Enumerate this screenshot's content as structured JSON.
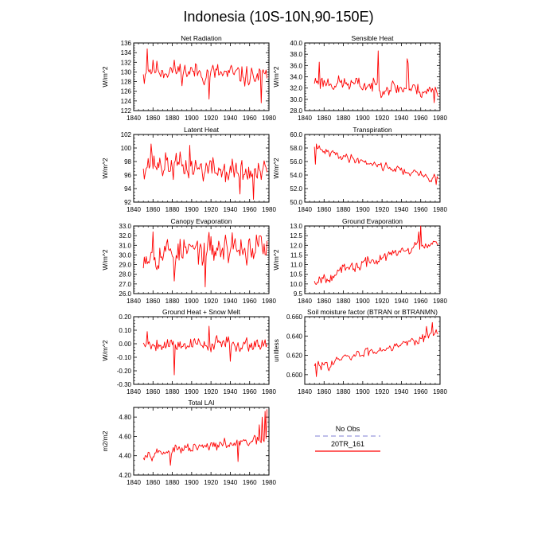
{
  "figure": {
    "title": "Indonesia (10S-10N,90-150E)",
    "legend": {
      "entries": [
        {
          "label": "No Obs",
          "color": "#9999dd",
          "dash": true
        },
        {
          "label": "20TR_161",
          "color": "#ff0000",
          "dash": false
        }
      ]
    }
  },
  "chart_data": [
    {
      "type": "line",
      "title": "Net Radiation",
      "ylabel": "W/m^2",
      "xlim": [
        1840,
        1980
      ],
      "ylim": [
        122,
        136
      ],
      "xticks": [
        1840,
        1860,
        1880,
        1900,
        1920,
        1940,
        1960,
        1980
      ],
      "xtick_labels": [
        "1840",
        "1860",
        "1880",
        "1900",
        "1920",
        "1940",
        "1960",
        "1980"
      ],
      "yticks": [
        122,
        124,
        126,
        128,
        130,
        132,
        134,
        136
      ],
      "ytick_labels": [
        "122",
        "124",
        "126",
        "128",
        "130",
        "132",
        "134",
        "136"
      ],
      "series": [
        {
          "name": "20TR_161",
          "start": 1850,
          "trend": [
            130.8,
            128.8
          ],
          "noise": 1.8,
          "seed": 11,
          "events": [
            [
              1854,
              134.8
            ],
            [
              1851,
              127.6
            ],
            [
              1972,
              123.6
            ],
            [
              1918,
              124.4
            ]
          ]
        }
      ]
    },
    {
      "type": "line",
      "title": "Sensible Heat",
      "ylabel": "W/m^2",
      "xlim": [
        1840,
        1980
      ],
      "ylim": [
        28,
        40
      ],
      "xticks": [
        1840,
        1860,
        1880,
        1900,
        1920,
        1940,
        1960,
        1980
      ],
      "xtick_labels": [
        "1840",
        "1860",
        "1880",
        "1900",
        "1920",
        "1940",
        "1960",
        "1980"
      ],
      "yticks": [
        28,
        30,
        32,
        34,
        36,
        38,
        40
      ],
      "ytick_labels": [
        "28.0",
        "30.0",
        "32.0",
        "34.0",
        "36.0",
        "38.0",
        "40.0"
      ],
      "series": [
        {
          "name": "20TR_161",
          "start": 1850,
          "trend": [
            33.2,
            31.4
          ],
          "noise": 1.1,
          "seed": 23,
          "events": [
            [
              1916,
              38.6
            ],
            [
              1946,
              37.2
            ],
            [
              1947,
              36.4
            ],
            [
              1855,
              36.6
            ],
            [
              1974,
              29.4
            ]
          ]
        }
      ]
    },
    {
      "type": "line",
      "title": "Latent Heat",
      "ylabel": "W/m^2",
      "xlim": [
        1840,
        1980
      ],
      "ylim": [
        92,
        102
      ],
      "xticks": [
        1840,
        1860,
        1880,
        1900,
        1920,
        1940,
        1960,
        1980
      ],
      "xtick_labels": [
        "1840",
        "1860",
        "1880",
        "1900",
        "1920",
        "1940",
        "1960",
        "1980"
      ],
      "yticks": [
        92,
        94,
        96,
        98,
        100,
        102
      ],
      "ytick_labels": [
        "92",
        "94",
        "96",
        "98",
        "100",
        "102"
      ],
      "series": [
        {
          "name": "20TR_161",
          "start": 1850,
          "trend": [
            97.8,
            96.0
          ],
          "noise": 1.6,
          "seed": 37,
          "events": [
            [
              1858,
              100.6
            ],
            [
              1898,
              100.4
            ],
            [
              1964,
              92.4
            ],
            [
              1950,
              93.2
            ]
          ]
        }
      ]
    },
    {
      "type": "line",
      "title": "Transpiration",
      "ylabel": "W/m^2",
      "xlim": [
        1840,
        1980
      ],
      "ylim": [
        50,
        60
      ],
      "xticks": [
        1840,
        1860,
        1880,
        1900,
        1920,
        1940,
        1960,
        1980
      ],
      "xtick_labels": [
        "1840",
        "1860",
        "1880",
        "1900",
        "1920",
        "1940",
        "1960",
        "1980"
      ],
      "yticks": [
        50,
        52,
        54,
        56,
        58,
        60
      ],
      "ytick_labels": [
        "50.0",
        "52.0",
        "54.0",
        "56.0",
        "58.0",
        "60.0"
      ],
      "series": [
        {
          "name": "20TR_161",
          "start": 1850,
          "trend": [
            57.8,
            53.4
          ],
          "noise": 0.5,
          "seed": 41,
          "events": [
            [
              1852,
              58.6
            ],
            [
              1851,
              55.6
            ],
            [
              1976,
              52.6
            ]
          ]
        }
      ]
    },
    {
      "type": "line",
      "title": "Canopy Evaporation",
      "ylabel": "W/m^2",
      "xlim": [
        1840,
        1980
      ],
      "ylim": [
        26,
        33
      ],
      "xticks": [
        1840,
        1860,
        1880,
        1900,
        1920,
        1940,
        1960,
        1980
      ],
      "xtick_labels": [
        "1840",
        "1860",
        "1880",
        "1900",
        "1920",
        "1940",
        "1960",
        "1980"
      ],
      "yticks": [
        26,
        27,
        28,
        29,
        30,
        31,
        32,
        33
      ],
      "ytick_labels": [
        "26.0",
        "27.0",
        "28.0",
        "29.0",
        "30.0",
        "31.0",
        "32.0",
        "33.0"
      ],
      "series": [
        {
          "name": "20TR_161",
          "start": 1850,
          "trend": [
            30.2,
            30.8
          ],
          "noise": 1.3,
          "seed": 53,
          "events": [
            [
              1914,
              26.7
            ],
            [
              1860,
              32.4
            ],
            [
              1942,
              32.3
            ],
            [
              1882,
              27.3
            ]
          ]
        }
      ]
    },
    {
      "type": "line",
      "title": "Ground Evaporation",
      "ylabel": "W/m^2",
      "xlim": [
        1840,
        1980
      ],
      "ylim": [
        9.5,
        13
      ],
      "xticks": [
        1840,
        1860,
        1880,
        1900,
        1920,
        1940,
        1960,
        1980
      ],
      "xtick_labels": [
        "1840",
        "1860",
        "1880",
        "1900",
        "1920",
        "1940",
        "1960",
        "1980"
      ],
      "yticks": [
        9.5,
        10,
        10.5,
        11,
        11.5,
        12,
        12.5,
        13
      ],
      "ytick_labels": [
        "9.5",
        "10.0",
        "10.5",
        "11.0",
        "11.5",
        "12.0",
        "12.5",
        "13.0"
      ],
      "series": [
        {
          "name": "20TR_161",
          "start": 1850,
          "trend": [
            10.2,
            12.3
          ],
          "noise": 0.25,
          "seed": 67,
          "events": [
            [
              1960,
              13.0
            ],
            [
              1851,
              10.0
            ],
            [
              1958,
              12.7
            ]
          ]
        }
      ]
    },
    {
      "type": "line",
      "title": "Ground Heat + Snow Melt",
      "ylabel": "W/m^2",
      "xlim": [
        1840,
        1980
      ],
      "ylim": [
        -0.3,
        0.2
      ],
      "xticks": [
        1840,
        1860,
        1880,
        1900,
        1920,
        1940,
        1960,
        1980
      ],
      "xtick_labels": [
        "1840",
        "1860",
        "1880",
        "1900",
        "1920",
        "1940",
        "1960",
        "1980"
      ],
      "yticks": [
        -0.3,
        -0.2,
        -0.1,
        0,
        0.1,
        0.2
      ],
      "ytick_labels": [
        "-0.30",
        "-0.20",
        "-0.10",
        "0.00",
        "0.10",
        "0.20"
      ],
      "series": [
        {
          "name": "20TR_161",
          "start": 1850,
          "trend": [
            0.0,
            0.0
          ],
          "noise": 0.045,
          "seed": 79,
          "events": [
            [
              1882,
              -0.23
            ],
            [
              1918,
              0.13
            ],
            [
              1854,
              0.09
            ],
            [
              1940,
              -0.13
            ]
          ]
        }
      ]
    },
    {
      "type": "line",
      "title": "Soil moisture factor (BTRAN or BTRANMN)",
      "ylabel": "unitless",
      "xlim": [
        1840,
        1980
      ],
      "ylim": [
        0.59,
        0.66
      ],
      "xticks": [
        1840,
        1860,
        1880,
        1900,
        1920,
        1940,
        1960,
        1980
      ],
      "xtick_labels": [
        "1840",
        "1860",
        "1880",
        "1900",
        "1920",
        "1940",
        "1960",
        "1980"
      ],
      "yticks": [
        0.6,
        0.62,
        0.64,
        0.66
      ],
      "ytick_labels": [
        "0.600",
        "0.620",
        "0.640",
        "0.660"
      ],
      "series": [
        {
          "name": "20TR_161",
          "start": 1850,
          "trend": [
            0.608,
            0.643
          ],
          "noise": 0.004,
          "seed": 83,
          "events": [
            [
              1972,
              0.654
            ],
            [
              1852,
              0.598
            ],
            [
              1966,
              0.65
            ]
          ]
        }
      ]
    },
    {
      "type": "line",
      "title": "Total LAI",
      "ylabel": "m2/m2",
      "xlim": [
        1840,
        1980
      ],
      "ylim": [
        4.2,
        4.9
      ],
      "xticks": [
        1840,
        1860,
        1880,
        1900,
        1920,
        1940,
        1960,
        1980
      ],
      "xtick_labels": [
        "1840",
        "1860",
        "1880",
        "1900",
        "1920",
        "1940",
        "1960",
        "1980"
      ],
      "yticks": [
        4.2,
        4.4,
        4.6,
        4.8
      ],
      "ytick_labels": [
        "4.20",
        "4.40",
        "4.60",
        "4.80"
      ],
      "series": [
        {
          "name": "20TR_161",
          "start": 1850,
          "trend": [
            4.42,
            4.56
          ],
          "noise": 0.04,
          "seed": 97,
          "events": [
            [
              1966,
              4.6
            ],
            [
              1970,
              4.72
            ],
            [
              1973,
              4.8
            ],
            [
              1976,
              4.86
            ],
            [
              1978,
              4.88
            ],
            [
              1878,
              4.3
            ],
            [
              1948,
              4.34
            ]
          ]
        }
      ]
    }
  ]
}
